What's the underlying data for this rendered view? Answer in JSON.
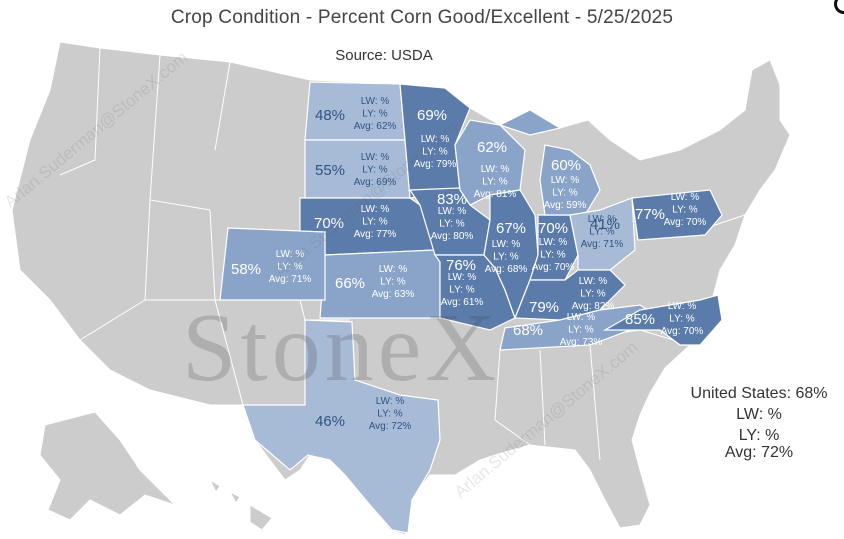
{
  "title": "Crop Condition - Percent Corn Good/Excellent - 5/25/2025",
  "source": "Source: USDA",
  "watermark": "StoneX",
  "watermark_diag": "Arlan.Suderman@StoneX.com",
  "colors": {
    "land": "#cccccc",
    "state_border": "#ffffff",
    "tier_light": "#a7bad6",
    "tier_mid": "#8aa4c9",
    "tier_dark": "#5b7cab",
    "lbl_light": "#2f5585",
    "lbl_dark": "#ffffff"
  },
  "states": [
    {
      "id": "ND",
      "pct": "48%",
      "lw": "LW: %",
      "ly": "LY: %",
      "avg": "Avg: 62%",
      "tier": "light"
    },
    {
      "id": "SD",
      "pct": "55%",
      "lw": "LW: %",
      "ly": "LY: %",
      "avg": "Avg: 69%",
      "tier": "light"
    },
    {
      "id": "NE",
      "pct": "70%",
      "lw": "LW: %",
      "ly": "LY: %",
      "avg": "Avg: 77%",
      "tier": "dark"
    },
    {
      "id": "KS",
      "pct": "66%",
      "lw": "LW: %",
      "ly": "LY: %",
      "avg": "Avg: 63%",
      "tier": "mid"
    },
    {
      "id": "CO",
      "pct": "58%",
      "lw": "LW: %",
      "ly": "LY: %",
      "avg": "Avg: 71%",
      "tier": "mid"
    },
    {
      "id": "TX",
      "pct": "46%",
      "lw": "LW: %",
      "ly": "LY: %",
      "avg": "Avg: 72%",
      "tier": "light"
    },
    {
      "id": "MN",
      "pct": "69%",
      "lw": "LW: %",
      "ly": "LY: %",
      "avg": "Avg: 79%",
      "tier": "dark"
    },
    {
      "id": "IA",
      "pct": "83%",
      "lw": "LW: %",
      "ly": "LY: %",
      "avg": "Avg: 80%",
      "tier": "dark"
    },
    {
      "id": "MO",
      "pct": "76%",
      "lw": "LW: %",
      "ly": "LY: %",
      "avg": "Avg: 61%",
      "tier": "dark"
    },
    {
      "id": "WI",
      "pct": "62%",
      "lw": "LW: %",
      "ly": "LY: %",
      "avg": "Avg: 81%",
      "tier": "mid"
    },
    {
      "id": "IL",
      "pct": "67%",
      "lw": "LW: %",
      "ly": "LY: %",
      "avg": "Avg: 68%",
      "tier": "dark"
    },
    {
      "id": "IN",
      "pct": "70%",
      "lw": "LW: %",
      "ly": "LY: %",
      "avg": "Avg: 70%",
      "tier": "dark"
    },
    {
      "id": "MI",
      "pct": "60%",
      "lw": "LW: %",
      "ly": "LY: %",
      "avg": "Avg: 59%",
      "tier": "mid"
    },
    {
      "id": "OH",
      "pct": "41%",
      "lw": "LW: %",
      "ly": "LY: %",
      "avg": "Avg: 71%",
      "tier": "light"
    },
    {
      "id": "KY",
      "pct": "79%",
      "lw": "LW: %",
      "ly": "LY: %",
      "avg": "Avg: 82%",
      "tier": "dark"
    },
    {
      "id": "TN",
      "pct": "68%",
      "lw": "LW: %",
      "ly": "LY: %",
      "avg": "Avg: 73%",
      "tier": "mid"
    },
    {
      "id": "PA",
      "pct": "77%",
      "lw": "LW: %",
      "ly": "LY: %",
      "avg": "Avg: 70%",
      "tier": "dark"
    },
    {
      "id": "NC",
      "pct": "85%",
      "lw": "LW: %",
      "ly": "LY: %",
      "avg": "Avg: 70%",
      "tier": "dark"
    }
  ],
  "national": {
    "us": "United States: 68%",
    "lw": "LW: %",
    "ly": "LY: %",
    "avg": "Avg: 72%"
  }
}
